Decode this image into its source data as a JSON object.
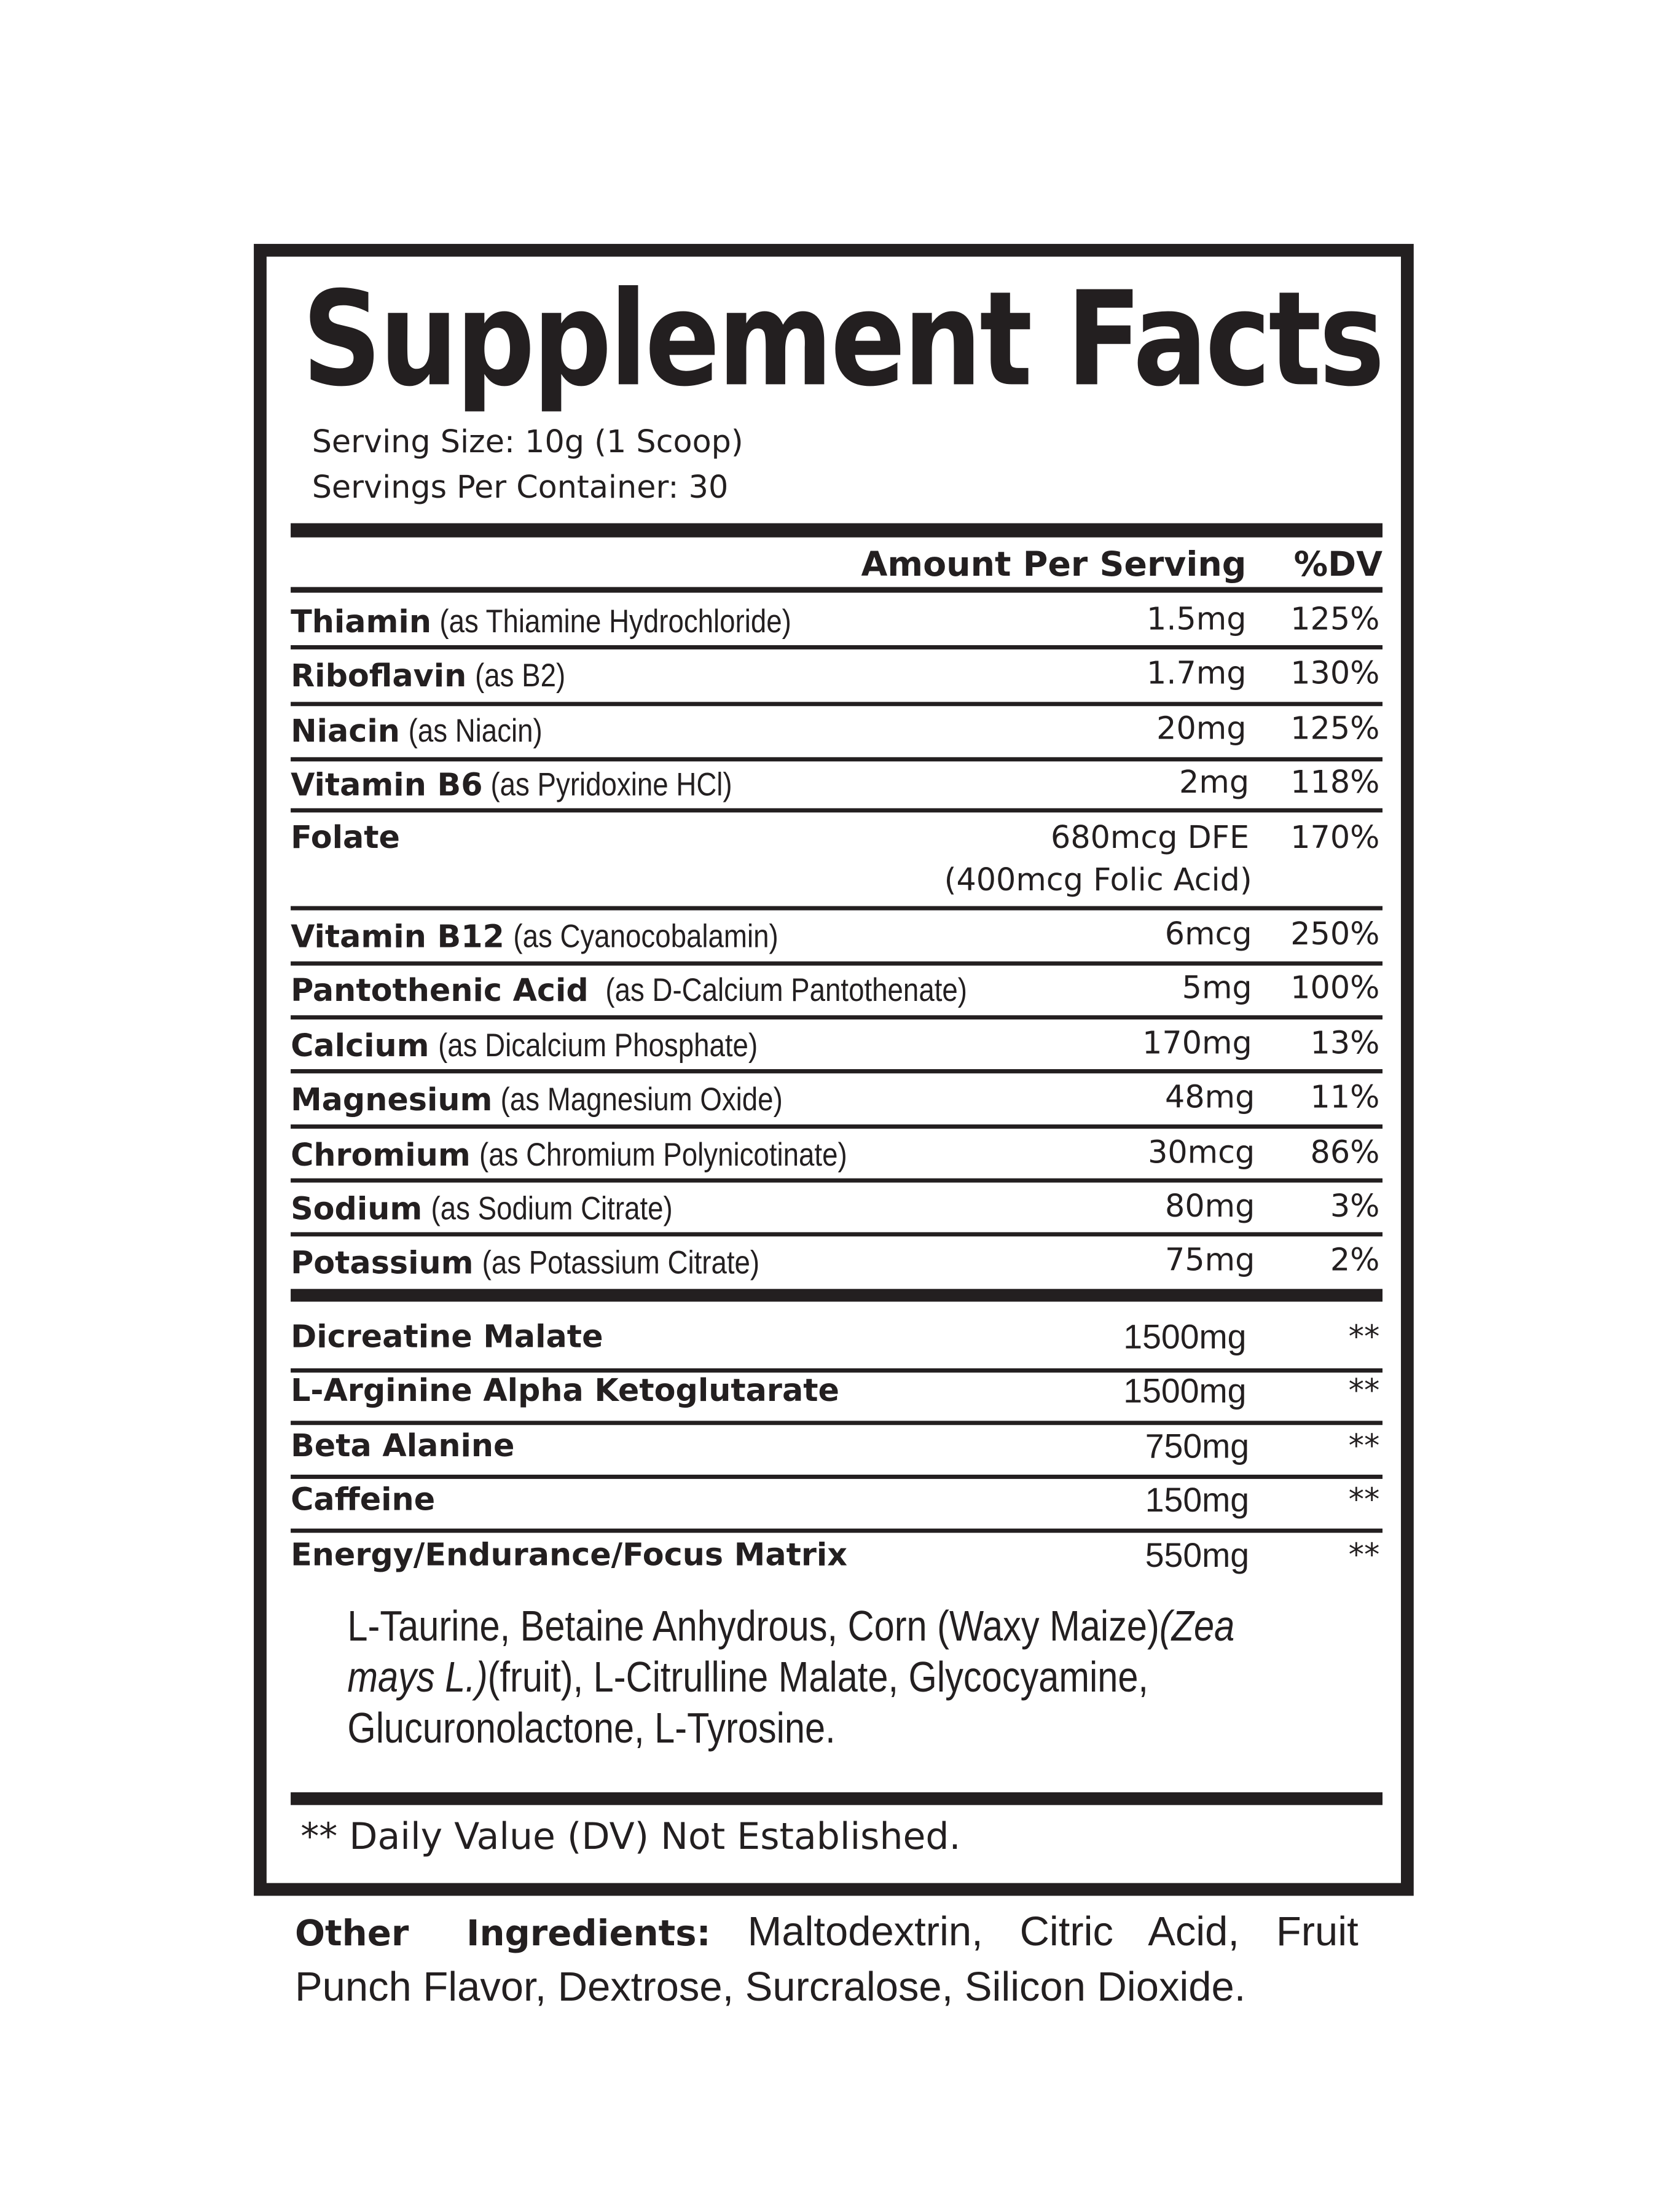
{
  "title": "Supplement Facts",
  "serving_size": "Serving Size: 10g (1 Scoop)",
  "servings_per_container": "Servings Per Container: 30",
  "header": {
    "amount": "Amount Per Serving",
    "dv": "%DV"
  },
  "vitamins": [
    {
      "name": "Thiamin",
      "desc": "(as Thiamine Hydrochloride)",
      "amount": "1.5mg",
      "dv": "125%"
    },
    {
      "name": "Riboflavin",
      "desc": "(as B2)",
      "amount": "1.7mg",
      "dv": "130%"
    },
    {
      "name": "Niacin",
      "desc": "(as Niacin)",
      "amount": "20mg",
      "dv": "125%"
    },
    {
      "name": "Vitamin B6",
      "desc": "(as Pyridoxine HCl)",
      "amount": "2mg",
      "dv": "118%"
    },
    {
      "name": "Folate",
      "desc": "",
      "amount": "680mcg DFE",
      "amount_note": "(400mcg Folic Acid)",
      "dv": "170%"
    },
    {
      "name": "Vitamin B12",
      "desc": "(as Cyanocobalamin)",
      "amount": "6mcg",
      "dv": "250%"
    },
    {
      "name": "Pantothenic Acid",
      "desc": "(as D-Calcium Pantothenate)",
      "amount": "5mg",
      "dv": "100%"
    },
    {
      "name": "Calcium",
      "desc": "(as Dicalcium Phosphate)",
      "amount": "170mg",
      "dv": "13%"
    },
    {
      "name": "Magnesium",
      "desc": "(as Magnesium Oxide)",
      "amount": "48mg",
      "dv": "11%"
    },
    {
      "name": "Chromium",
      "desc": "(as Chromium Polynicotinate)",
      "amount": "30mcg",
      "dv": "86%"
    },
    {
      "name": "Sodium",
      "desc": "(as Sodium Citrate)",
      "amount": "80mg",
      "dv": "3%"
    },
    {
      "name": "Potassium",
      "desc": "(as Potassium Citrate)",
      "amount": "75mg",
      "dv": "2%"
    }
  ],
  "blends": [
    {
      "name": "Dicreatine Malate",
      "amount": "1500mg",
      "dv": "**"
    },
    {
      "name": "L-Arginine Alpha Ketoglutarate",
      "amount": "1500mg",
      "dv": "**"
    },
    {
      "name": "Beta Alanine",
      "amount": "750mg",
      "dv": "**"
    },
    {
      "name": "Caffeine",
      "amount": "150mg",
      "dv": "**"
    },
    {
      "name": "Energy/Endurance/Focus Matrix",
      "amount": "550mg",
      "dv": "**"
    }
  ],
  "matrix_ingredients": {
    "part1": "L-Taurine, Betaine Anhydrous, Corn (Waxy Maize)",
    "italic1": "(Zea mays L.)",
    "part2": "(fruit),  L-Citrulline Malate, Glycocyamine, Glucuronolactone, L-Tyrosine."
  },
  "footnote": "** Daily Value (DV) Not Established.",
  "other_ingredients": {
    "label": "Other Ingredients:",
    "text": "Maltodextrin, Citric Acid, Fruit Punch Flavor, Dextrose, Surcralose, Silicon Dioxide."
  }
}
